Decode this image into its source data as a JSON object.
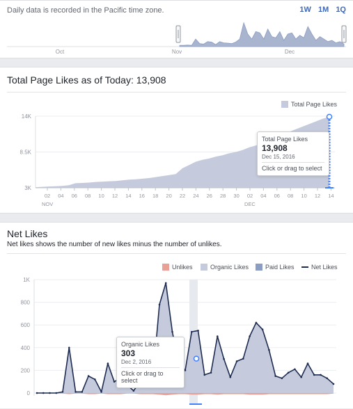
{
  "header": {
    "timezone_note": "Daily data is recorded in the Pacific time zone.",
    "ranges": [
      "1W",
      "1M",
      "1Q"
    ]
  },
  "range_selector": {
    "month_labels": [
      "Oct",
      "Nov",
      "Dec"
    ],
    "sparkline": [
      0.05,
      0.05,
      0.06,
      0.05,
      0.3,
      0.12,
      0.1,
      0.2,
      0.18,
      0.08,
      0.2,
      0.15,
      0.14,
      0.12,
      0.18,
      0.3,
      0.95,
      0.5,
      0.3,
      0.6,
      0.55,
      0.3,
      0.7,
      0.4,
      0.35,
      0.6,
      0.25,
      0.5,
      0.55,
      0.3,
      0.45,
      0.35,
      0.8,
      0.5,
      0.25,
      0.4,
      0.3,
      0.2,
      0.25,
      0.15,
      0.2,
      0.1
    ]
  },
  "total_likes": {
    "title": "Total Page Likes as of Today: 13,908",
    "legend": "Total Page Likes",
    "color": "#c5cbdc",
    "tooltip": {
      "label": "Total Page Likes",
      "value": "13,908",
      "date": "Dec 15, 2016",
      "action": "Click or drag to select"
    }
  },
  "net_likes": {
    "title": "Net Likes",
    "subtitle": "Net likes shows the number of new likes minus the number of unlikes.",
    "tooltip": {
      "label": "Organic Likes",
      "value": "303",
      "date": "Dec 2, 2016",
      "action": "Click or drag to select"
    }
  },
  "chart_data": [
    {
      "type": "area",
      "ylim": [
        3000,
        14000
      ],
      "y_ticks": [
        "3K",
        "8.5K",
        "14K"
      ],
      "y_tick_values": [
        3000,
        8500,
        14000
      ],
      "x_ticks": [
        "02",
        "04",
        "06",
        "08",
        "10",
        "12",
        "14",
        "16",
        "18",
        "20",
        "22",
        "24",
        "26",
        "28",
        "30",
        "02",
        "04",
        "06",
        "08",
        "10",
        "12",
        "14"
      ],
      "month_labels": [
        {
          "label": "NOV",
          "at": 0
        },
        {
          "label": "DEC",
          "at": 15
        }
      ],
      "legend_position": "top-right",
      "series": [
        {
          "name": "Total Page Likes",
          "color": "#c5cbdc",
          "x": [
            "Nov 1",
            "Nov 2",
            "Nov 3",
            "Nov 4",
            "Nov 5",
            "Nov 6",
            "Nov 7",
            "Nov 8",
            "Nov 9",
            "Nov 10",
            "Nov 11",
            "Nov 12",
            "Nov 13",
            "Nov 14",
            "Nov 15",
            "Nov 16",
            "Nov 17",
            "Nov 18",
            "Nov 19",
            "Nov 20",
            "Nov 21",
            "Nov 22",
            "Nov 23",
            "Nov 24",
            "Nov 25",
            "Nov 26",
            "Nov 27",
            "Nov 28",
            "Nov 29",
            "Nov 30",
            "Dec 1",
            "Dec 2",
            "Dec 3",
            "Dec 4",
            "Dec 5",
            "Dec 6",
            "Dec 7",
            "Dec 8",
            "Dec 9",
            "Dec 10",
            "Dec 11",
            "Dec 12",
            "Dec 13",
            "Dec 14",
            "Dec 15"
          ],
          "values": [
            3100,
            3150,
            3200,
            3250,
            3300,
            3400,
            3700,
            3750,
            3800,
            3900,
            3950,
            4000,
            4050,
            4150,
            4250,
            4300,
            4400,
            4500,
            4650,
            4800,
            4950,
            5100,
            6000,
            6500,
            7000,
            7300,
            7500,
            7800,
            8000,
            8300,
            8500,
            8800,
            9200,
            9500,
            10000,
            10500,
            10900,
            11300,
            11600,
            12000,
            12400,
            12800,
            13200,
            13600,
            13908
          ]
        }
      ]
    },
    {
      "type": "area",
      "ylim": [
        0,
        1000
      ],
      "y_ticks": [
        "0",
        "200",
        "400",
        "600",
        "800",
        "1K"
      ],
      "y_tick_values": [
        0,
        200,
        400,
        600,
        800,
        1000
      ],
      "legend_position": "top-right",
      "legend": [
        "Unlikes",
        "Organic Likes",
        "Paid Likes",
        "Net Likes"
      ],
      "colors": {
        "Unlikes": "#e9a195",
        "Organic Likes": "#c5cbdc",
        "Paid Likes": "#8b9dc3",
        "Net Likes": "#1d2b50"
      },
      "series": [
        {
          "name": "Net Likes",
          "values": [
            0,
            0,
            0,
            0,
            10,
            400,
            10,
            10,
            150,
            120,
            10,
            260,
            100,
            130,
            70,
            20,
            100,
            100,
            140,
            780,
            970,
            540,
            260,
            200,
            540,
            550,
            160,
            180,
            500,
            300,
            140,
            280,
            303,
            500,
            620,
            560,
            380,
            150,
            130,
            180,
            210,
            140,
            260,
            160,
            160,
            130,
            80
          ]
        },
        {
          "name": "Unlikes",
          "values": [
            -5,
            -5,
            -5,
            -5,
            -5,
            -10,
            -5,
            -5,
            -10,
            -10,
            -5,
            -10,
            -10,
            -10,
            -5,
            -5,
            -10,
            -10,
            -10,
            -15,
            -20,
            -15,
            -10,
            -10,
            -15,
            -15,
            -10,
            -10,
            -15,
            -10,
            -10,
            -10,
            -10,
            -15,
            -15,
            -15,
            -10,
            -10,
            -10,
            -10,
            -10,
            -10,
            -10,
            -10,
            -10,
            -10,
            -5
          ]
        }
      ]
    }
  ]
}
